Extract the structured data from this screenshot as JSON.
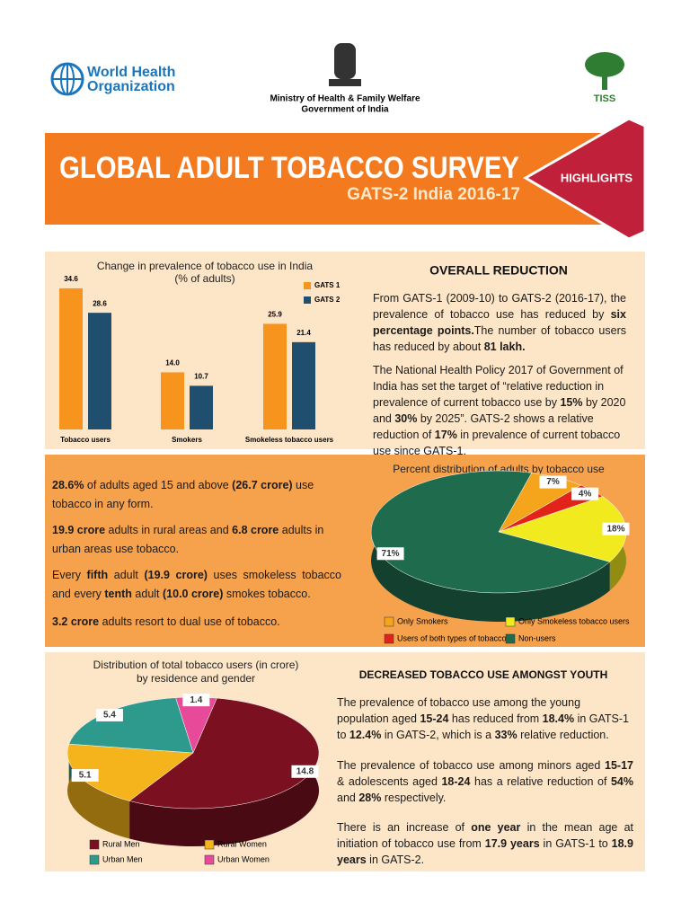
{
  "header": {
    "who": [
      "World Health",
      "Organization"
    ],
    "ministry": [
      "Ministry of Health & Family Welfare",
      "Government of India"
    ],
    "tiss": "TISS"
  },
  "banner": {
    "title": "GLOBAL ADULT TOBACCO SURVEY",
    "subtitle": "GATS-2 India 2016-17",
    "tag": "HIGHLIGHTS"
  },
  "section1": {
    "heading": "OVERALL REDUCTION",
    "paragraphs": [
      [
        "From GATS-1 (2009-10) to GATS-2 (2016-17), the prevalence of tobacco use has reduced by ",
        {
          "b": "six percentage points."
        },
        "The number of tobacco users has reduced by about ",
        {
          "b": "81 lakh."
        }
      ],
      [
        "The National Health Policy 2017 of Government of India has set the target of “relative reduction in prevalence of current tobacco use by ",
        {
          "b": "15%"
        },
        " by 2020 and ",
        {
          "b": "30%"
        },
        " by 2025”. GATS-2 shows a relative reduction of ",
        {
          "b": "17%"
        },
        " in prevalence of current tobacco use since GATS-1."
      ]
    ]
  },
  "section2": {
    "paragraphs": [
      [
        {
          "b": "28.6%"
        },
        " of adults aged 15 and above ",
        {
          "b": "(26.7 crore)"
        },
        " use tobacco in any form."
      ],
      [
        {
          "b": "19.9 crore"
        },
        " adults in rural areas and ",
        {
          "b": "6.8 crore"
        },
        " adults in urban areas use tobacco."
      ],
      [
        "Every ",
        {
          "b": "fifth"
        },
        " adult ",
        {
          "b": "(19.9 crore)"
        },
        " uses smokeless tobacco and every ",
        {
          "b": "tenth"
        },
        " adult ",
        {
          "b": "(10.0 crore)"
        },
        " smokes tobacco."
      ],
      [
        {
          "b": "3.2 crore"
        },
        " adults resort to dual use of tobacco."
      ]
    ]
  },
  "section3": {
    "heading": "DECREASED TOBACCO USE AMONGST YOUTH",
    "paragraphs": [
      [
        "The prevalence of tobacco use among the young population aged ",
        {
          "b": "15-24"
        },
        " has reduced from ",
        {
          "b": "18.4%"
        },
        " in GATS-1 to ",
        {
          "b": "12.4%"
        },
        " in GATS-2, which is a ",
        {
          "b": "33%"
        },
        " relative reduction."
      ],
      [
        "The prevalence of tobacco use among minors aged ",
        {
          "b": "15-17"
        },
        " & adolescents aged ",
        {
          "b": "18-24"
        },
        " has a relative reduction of ",
        {
          "b": "54%"
        },
        " and ",
        {
          "b": "28%"
        },
        " respectively."
      ],
      [
        "There is an increase of ",
        {
          "b": "one year"
        },
        " in the mean age at initiation of tobacco use from ",
        {
          "b": "17.9 years"
        },
        " in GATS-1 to ",
        {
          "b": "18.9 years"
        },
        "  in GATS-2."
      ]
    ]
  },
  "chart_data": [
    {
      "type": "bar",
      "title": [
        "Change in prevalence of tobacco use in India",
        "(% of adults)"
      ],
      "categories": [
        "Tobacco users",
        "Smokers",
        "Smokeless tobacco users"
      ],
      "series": [
        {
          "name": "GATS 1",
          "color": "#f7941d",
          "values": [
            34.6,
            14.0,
            25.9
          ],
          "value_labels": [
            "34.6",
            "14.0",
            "25.9"
          ]
        },
        {
          "name": "GATS 2",
          "color": "#1f4e6e",
          "values": [
            28.6,
            10.7,
            21.4
          ]
        }
      ]
    },
    {
      "type": "pie",
      "title": [
        "Percent distribution of adults by tobacco use"
      ],
      "categories": [
        "Only Smokers",
        "Users of both types of tobacco",
        "Only Smokeless tobacco users",
        "Non-users"
      ],
      "values": [
        7,
        4,
        18,
        71
      ],
      "value_labels": [
        "7%",
        "4%",
        "18%",
        "71%"
      ],
      "colors": [
        "#f5a51b",
        "#e2231a",
        "#f1ea1e",
        "#1f6b4e"
      ]
    },
    {
      "type": "pie",
      "title": [
        "Distribution of total tobacco users  (in crore)",
        "by residence and gender"
      ],
      "categories": [
        "Urban Women",
        "Rural Men",
        "Rural Women",
        "Urban Men"
      ],
      "values": [
        1.4,
        14.8,
        5.1,
        5.4
      ],
      "colors": [
        "#e84a9a",
        "#7a1020",
        "#f5b41b",
        "#2e9a8e"
      ]
    }
  ]
}
